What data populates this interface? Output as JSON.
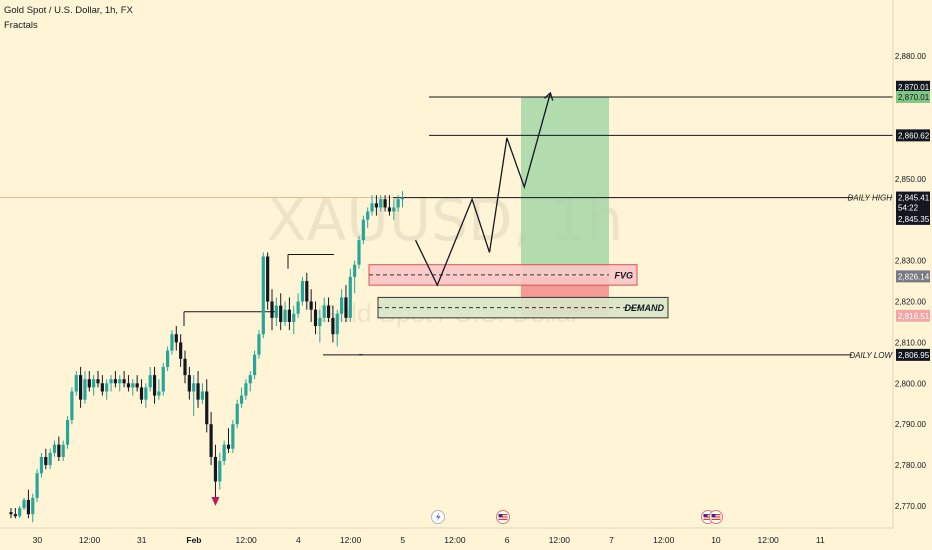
{
  "header": {
    "title": "Gold Spot / U.S. Dollar, 1h, FX",
    "indicator": "Fractals"
  },
  "watermark": {
    "symbol": "XAUUSD, 1h",
    "name": "Gold Spot / U.S. Dollar"
  },
  "colors": {
    "background": "#fff5d6",
    "bull": "#26a69a",
    "bear": "#131722",
    "target_zone": "#a5d6a7",
    "stop_zone": "#f28b8b",
    "fvg_zone": "#f9c7c7",
    "demand_zone": "#d8e7c8",
    "fractal_down": "#c2185b"
  },
  "chart_data": {
    "type": "candlestick",
    "symbol": "XAUUSD",
    "timeframe": "1h",
    "y_axis": {
      "min": 2765,
      "max": 2885,
      "ticks": [
        2770,
        2780,
        2790,
        2800,
        2810,
        2820,
        2830,
        2850,
        2880
      ],
      "tick_labels": [
        "2,770.00",
        "2,780.00",
        "2,790.00",
        "2,800.00",
        "2,810.00",
        "2,820.00",
        "2,830.00",
        "2,850.00",
        "2,880.00"
      ]
    },
    "x_axis": {
      "ticks": [
        {
          "label": "30",
          "bar": 1
        },
        {
          "label": "12:00",
          "bar": 13
        },
        {
          "label": "31",
          "bar": 25
        },
        {
          "label": "Feb",
          "bar": 37
        },
        {
          "label": "12:00",
          "bar": 49
        },
        {
          "label": "4",
          "bar": 61
        },
        {
          "label": "12:00",
          "bar": 73
        },
        {
          "label": "5",
          "bar": 85
        },
        {
          "label": "12:00",
          "bar": 97
        },
        {
          "label": "6",
          "bar": 109
        },
        {
          "label": "12:00",
          "bar": 121
        },
        {
          "label": "7",
          "bar": 133
        },
        {
          "label": "12:00",
          "bar": 145
        },
        {
          "label": "10",
          "bar": 157
        },
        {
          "label": "12:00",
          "bar": 169
        },
        {
          "label": "11",
          "bar": 181
        }
      ]
    },
    "candles_ohlc": [
      [
        2768.5,
        2769.5,
        2767,
        2768
      ],
      [
        2768,
        2769.5,
        2767,
        2767.5
      ],
      [
        2767.5,
        2770,
        2767,
        2769.5
      ],
      [
        2769.5,
        2772,
        2769,
        2771.5
      ],
      [
        2771.5,
        2774,
        2767,
        2768
      ],
      [
        2768,
        2773,
        2766,
        2772
      ],
      [
        2772,
        2779,
        2771,
        2778
      ],
      [
        2778,
        2783,
        2777,
        2782
      ],
      [
        2782,
        2784,
        2779,
        2780
      ],
      [
        2780,
        2784,
        2779,
        2783
      ],
      [
        2783,
        2786,
        2782,
        2785
      ],
      [
        2785,
        2787,
        2781,
        2782
      ],
      [
        2782,
        2786,
        2781,
        2785
      ],
      [
        2785,
        2792,
        2784,
        2791
      ],
      [
        2791,
        2799,
        2790,
        2798
      ],
      [
        2798,
        2803,
        2797,
        2802
      ],
      [
        2802,
        2804,
        2794,
        2796
      ],
      [
        2796,
        2803,
        2795,
        2801
      ],
      [
        2801,
        2803,
        2798,
        2799
      ],
      [
        2799,
        2802,
        2797,
        2801
      ],
      [
        2801,
        2803,
        2799,
        2800
      ],
      [
        2800,
        2802,
        2797,
        2798
      ],
      [
        2798,
        2801,
        2796,
        2800
      ],
      [
        2800,
        2802,
        2798,
        2801
      ],
      [
        2801,
        2803,
        2799,
        2800
      ],
      [
        2800,
        2802,
        2798,
        2801
      ],
      [
        2801,
        2803,
        2799,
        2800
      ],
      [
        2800,
        2802,
        2798,
        2799
      ],
      [
        2799,
        2801,
        2797,
        2800
      ],
      [
        2800,
        2802,
        2798,
        2799
      ],
      [
        2799,
        2801,
        2795,
        2796
      ],
      [
        2796,
        2800,
        2794,
        2799
      ],
      [
        2799,
        2804,
        2798,
        2802
      ],
      [
        2802,
        2804,
        2795,
        2797
      ],
      [
        2797,
        2801,
        2796,
        2798
      ],
      [
        2798,
        2805,
        2797,
        2804
      ],
      [
        2804,
        2809,
        2803,
        2808
      ],
      [
        2808,
        2813,
        2807,
        2812
      ],
      [
        2812,
        2814,
        2808,
        2810
      ],
      [
        2810,
        2812,
        2804,
        2806
      ],
      [
        2806,
        2808,
        2800,
        2802
      ],
      [
        2802,
        2804,
        2796,
        2798
      ],
      [
        2798,
        2802,
        2792,
        2800
      ],
      [
        2800,
        2803,
        2794,
        2796
      ],
      [
        2796,
        2800,
        2795,
        2798
      ],
      [
        2798,
        2801,
        2788,
        2790
      ],
      [
        2790,
        2793,
        2780,
        2782
      ],
      [
        2782,
        2785,
        2772,
        2776
      ],
      [
        2776,
        2783,
        2774,
        2781
      ],
      [
        2781,
        2786,
        2780,
        2785
      ],
      [
        2785,
        2789,
        2783,
        2784
      ],
      [
        2784,
        2791,
        2783,
        2790
      ],
      [
        2790,
        2796,
        2789,
        2795
      ],
      [
        2795,
        2799,
        2794,
        2797
      ],
      [
        2797,
        2801,
        2796,
        2800
      ],
      [
        2800,
        2803,
        2798,
        2802
      ],
      [
        2802,
        2808,
        2801,
        2807
      ],
      [
        2807,
        2813,
        2806,
        2812
      ],
      [
        2812,
        2832,
        2811,
        2831
      ],
      [
        2831,
        2832,
        2818,
        2820
      ],
      [
        2820,
        2823,
        2813,
        2816
      ],
      [
        2816,
        2821,
        2814,
        2819
      ],
      [
        2819,
        2822,
        2813,
        2815
      ],
      [
        2815,
        2820,
        2814,
        2818
      ],
      [
        2818,
        2821,
        2813,
        2815
      ],
      [
        2815,
        2819,
        2812,
        2817
      ],
      [
        2817,
        2822,
        2816,
        2820
      ],
      [
        2820,
        2826,
        2819,
        2825
      ],
      [
        2825,
        2827,
        2818,
        2820
      ],
      [
        2820,
        2823,
        2815,
        2818
      ],
      [
        2818,
        2820,
        2812,
        2814
      ],
      [
        2814,
        2818,
        2810,
        2816
      ],
      [
        2816,
        2821,
        2815,
        2819
      ],
      [
        2819,
        2821,
        2815,
        2816
      ],
      [
        2816,
        2819,
        2810,
        2812
      ],
      [
        2812,
        2818,
        2809,
        2817
      ],
      [
        2817,
        2823,
        2815,
        2821
      ],
      [
        2821,
        2824,
        2815,
        2816
      ],
      [
        2816,
        2828,
        2815,
        2826
      ],
      [
        2826,
        2830,
        2822,
        2829
      ],
      [
        2829,
        2836,
        2828,
        2835
      ],
      [
        2835,
        2841,
        2834,
        2840
      ],
      [
        2840,
        2843,
        2838,
        2842
      ],
      [
        2842,
        2846,
        2841,
        2844
      ],
      [
        2844,
        2846,
        2841,
        2843
      ],
      [
        2843,
        2846,
        2842,
        2845
      ],
      [
        2845,
        2846,
        2842,
        2843
      ],
      [
        2843,
        2846,
        2841,
        2842
      ],
      [
        2842,
        2845,
        2840,
        2843
      ],
      [
        2843,
        2846,
        2842,
        2845
      ],
      [
        2845,
        2847,
        2843,
        2845.4
      ]
    ],
    "levels": [
      {
        "price": 2870.01,
        "label": "2,870.01"
      },
      {
        "price": 2860.62,
        "label": "2,860.62"
      },
      {
        "price": 2845.41,
        "label": "DAILY HIGH",
        "value_label": "2,845.41"
      },
      {
        "price": 2806.95,
        "label": "DAILY LOW",
        "value_label": "2,806.95"
      }
    ],
    "zones": [
      {
        "name": "FVG",
        "top": 2829,
        "bottom": 2824,
        "mid": 2826.5
      },
      {
        "name": "DEMAND",
        "top": 2821,
        "bottom": 2816,
        "mid": 2818.5
      }
    ],
    "position": {
      "type": "long",
      "entry": 2826.14,
      "stop": 2816.51,
      "target": 2870.01
    },
    "price_labels": [
      {
        "value": "2,870.01",
        "price": 2872.5,
        "style": "dark"
      },
      {
        "value": "2,870.01",
        "price": 2870.01,
        "style": "green"
      },
      {
        "value": "2,860.62",
        "price": 2860.62,
        "style": "dark"
      },
      {
        "value": "2,845.41",
        "price": 2845.41,
        "style": "dark"
      },
      {
        "value": "54:22",
        "price": 2843.0,
        "style": "dark"
      },
      {
        "value": "2,845.35",
        "price": 2840.2,
        "style": "dark"
      },
      {
        "value": "2,826.14",
        "price": 2826.14,
        "style": "gray"
      },
      {
        "value": "2,816.51",
        "price": 2816.51,
        "style": "pink"
      },
      {
        "value": "2,806.95",
        "price": 2806.95,
        "style": "dark"
      }
    ],
    "projection_path": [
      [
        93,
        2835
      ],
      [
        98,
        2824
      ],
      [
        106,
        2845
      ],
      [
        110,
        2832
      ],
      [
        114,
        2860
      ],
      [
        118,
        2848
      ],
      [
        124,
        2871
      ]
    ],
    "fractal_marks": [
      {
        "bar": 47,
        "direction": "down"
      }
    ]
  }
}
